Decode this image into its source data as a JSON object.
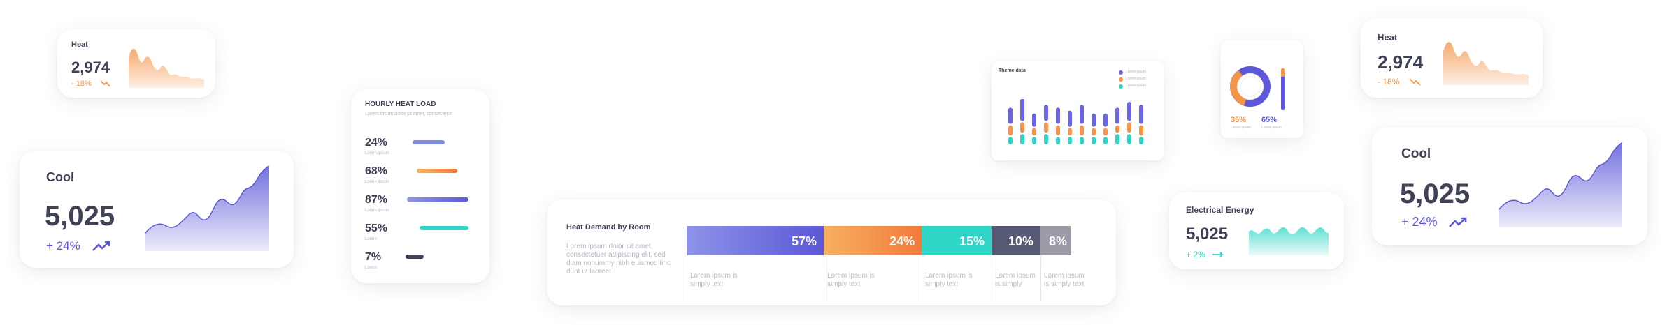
{
  "heat_small_left": {
    "title": "Heat",
    "value": "2,974",
    "delta": "- 18%",
    "trend_icon": "trend-down-icon"
  },
  "cool_left": {
    "title": "Cool",
    "value": "5,025",
    "delta": "+ 24%",
    "trend_icon": "trend-up-icon"
  },
  "hourly": {
    "title": "HOURLY HEAT LOAD",
    "subtitle": "Lorem ipsum dolor sit amet, consectetur",
    "rows": [
      {
        "pct": "24%",
        "label": "Lorem ipsum",
        "fill": 0.24,
        "color": "#7f8ce6"
      },
      {
        "pct": "68%",
        "label": "Lorem ipsum",
        "fill": 0.68,
        "color": "#f4954a"
      },
      {
        "pct": "87%",
        "label": "Lorem ipsum",
        "fill": 0.87,
        "color": "#5c58d8"
      },
      {
        "pct": "55%",
        "label": "Lorem",
        "fill": 0.55,
        "color": "#2ed4c5"
      },
      {
        "pct": "7%",
        "label": "Lorem",
        "fill": 0.07,
        "color": "#3f4257"
      }
    ]
  },
  "demand": {
    "title": "Heat Demand by Room",
    "desc": "Lorem ipsum dolor sit amet, consectetuer adipiscing elit, sed diam nonummy nibh euismod tinc dunt ut laoreet",
    "segments": [
      {
        "pct": "57%",
        "note": "Lorem ipsum is simply text",
        "color": "#6b66e0"
      },
      {
        "pct": "24%",
        "note": "Lorem ipsum is simply text",
        "color": "#f4954a"
      },
      {
        "pct": "15%",
        "note": "Lorem ipsum is simply text",
        "color": "#2ed4c5"
      },
      {
        "pct": "10%",
        "note": "Lorem ipsum is simply",
        "color": "#565a75"
      },
      {
        "pct": "8%",
        "note": "Lorem ipsum is simply text",
        "color": "#9a9ba6"
      }
    ]
  },
  "theme": {
    "title": "Theme data",
    "legend": [
      "Lorem ipsum",
      "Lorem ipsum",
      "Lorem ipsum"
    ],
    "chart_data": {
      "type": "bar",
      "series": [
        {
          "values": [
            3,
            4,
            3,
            4,
            3,
            3,
            3,
            3,
            3,
            4,
            4,
            3
          ],
          "color": "#2ed4c5"
        },
        {
          "values": [
            4,
            4,
            3,
            4,
            4,
            3,
            4,
            3,
            3,
            3,
            4,
            4
          ],
          "color": "#f4954a"
        },
        {
          "values": [
            6,
            8,
            5,
            6,
            6,
            6,
            7,
            5,
            5,
            6,
            7,
            7
          ],
          "color": "#6b66e0"
        }
      ]
    }
  },
  "donut": {
    "chart_data": {
      "type": "pie",
      "values": [
        35,
        65
      ]
    },
    "left_pct": "35%",
    "right_pct": "65%",
    "left_label": "Lorem ipsum",
    "right_label": "Lorem ipsum"
  },
  "electrical": {
    "title": "Electrical Energy",
    "value": "5,025",
    "delta": "+ 2%",
    "trend_icon": "trend-flat-icon"
  },
  "heat_small_right": {
    "title": "Heat",
    "value": "2,974",
    "delta": "- 18%",
    "trend_icon": "trend-down-icon"
  },
  "cool_right": {
    "title": "Cool",
    "value": "5,025",
    "delta": "+ 24%",
    "trend_icon": "trend-up-icon"
  },
  "colors": {
    "orange": "#f4954a",
    "purple": "#5c58d8",
    "teal": "#2ed4c5",
    "dark": "#3f4257"
  }
}
